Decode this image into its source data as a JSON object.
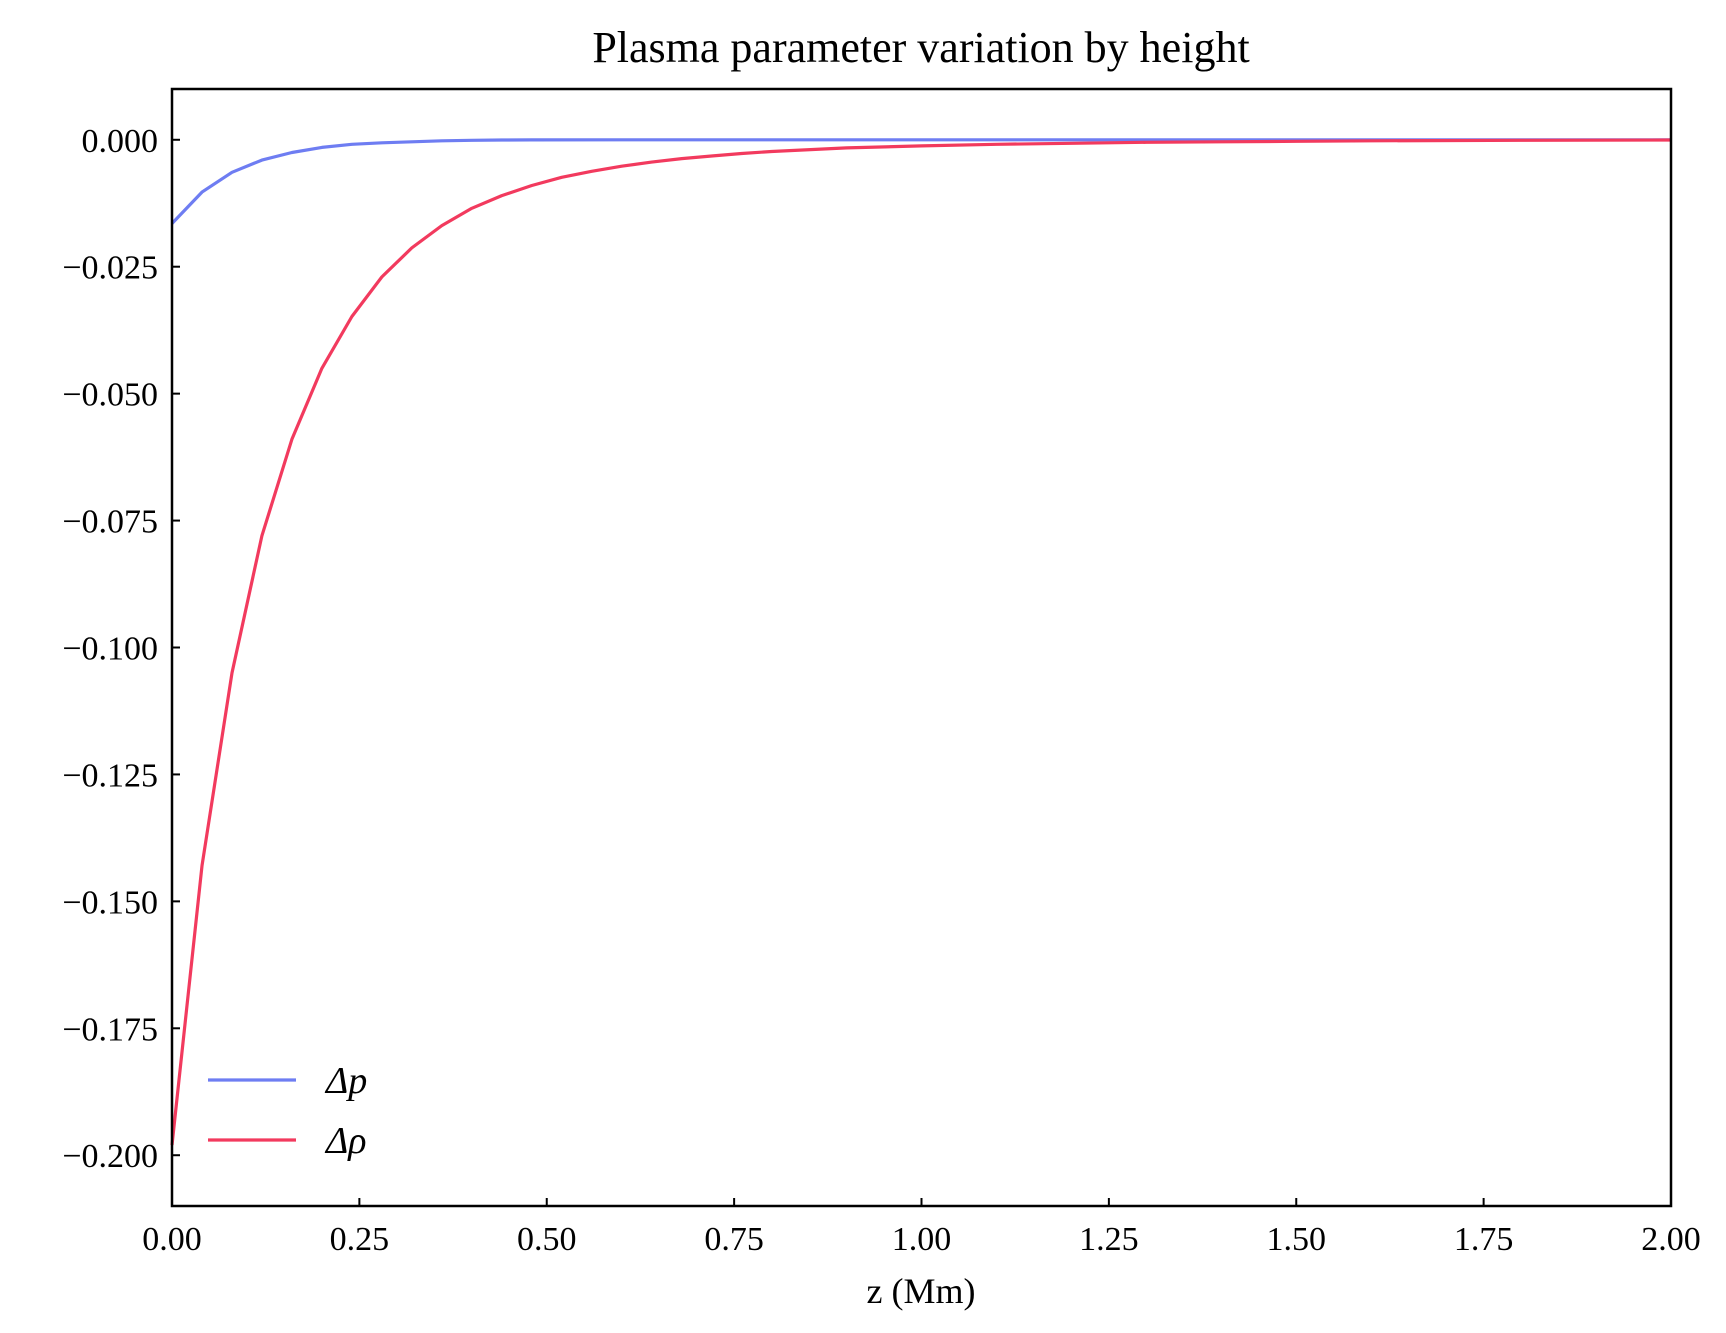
{
  "chart_data": {
    "type": "line",
    "title": "Plasma parameter variation by height",
    "xlabel": "z (Mm)",
    "ylabel": "",
    "xlim": [
      0,
      2
    ],
    "ylim": [
      -0.21,
      0.01
    ],
    "xticks": [
      "0.00",
      "0.25",
      "0.50",
      "0.75",
      "1.00",
      "1.25",
      "1.50",
      "1.75",
      "2.00"
    ],
    "yticks": [
      "0.000",
      "−0.025",
      "−0.050",
      "−0.075",
      "−0.100",
      "−0.125",
      "−0.150",
      "−0.175",
      "−0.200"
    ],
    "grid": false,
    "legend": {
      "position": "lower-left"
    },
    "series": [
      {
        "name": "Δp",
        "color": "#6e7df2",
        "x": [
          0,
          0.04,
          0.08,
          0.12,
          0.16,
          0.2,
          0.24,
          0.28,
          0.32,
          0.36,
          0.4,
          0.44,
          0.48,
          0.6,
          0.8,
          1.0,
          1.25,
          1.5,
          1.75,
          2.0
        ],
        "y": [
          -0.0165,
          -0.0103,
          -0.0064,
          -0.004,
          -0.0025,
          -0.0015,
          -0.0009,
          -0.0006,
          -0.0004,
          -0.0002,
          -0.0001,
          -5e-05,
          -2e-05,
          0,
          0,
          0,
          0,
          0,
          0,
          0
        ]
      },
      {
        "name": "Δρ",
        "color": "#f23a5e",
        "x": [
          0,
          0.04,
          0.08,
          0.12,
          0.16,
          0.2,
          0.24,
          0.28,
          0.32,
          0.36,
          0.4,
          0.44,
          0.48,
          0.52,
          0.56,
          0.6,
          0.64,
          0.68,
          0.72,
          0.76,
          0.8,
          0.9,
          1.0,
          1.1,
          1.2,
          1.3,
          1.4,
          1.5,
          1.6,
          1.8,
          2.0
        ],
        "y": [
          -0.198,
          -0.143,
          -0.105,
          -0.078,
          -0.059,
          -0.045,
          -0.0348,
          -0.027,
          -0.0213,
          -0.0169,
          -0.0135,
          -0.011,
          -0.009,
          -0.0074,
          -0.0062,
          -0.0052,
          -0.0044,
          -0.0037,
          -0.0032,
          -0.0027,
          -0.0023,
          -0.0016,
          -0.0012,
          -0.0009,
          -0.0007,
          -0.0005,
          -0.0004,
          -0.0003,
          -0.0002,
          -0.0001,
          -5e-05
        ]
      }
    ]
  }
}
